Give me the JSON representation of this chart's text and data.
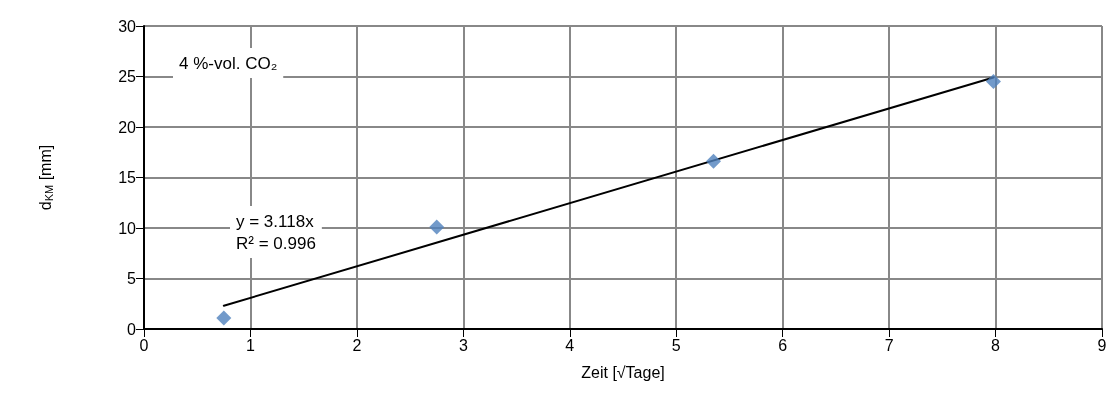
{
  "chart_data": {
    "type": "scatter",
    "xlabel": "Zeit [√Tage]",
    "ylabel": "d$_{KM}$ [mm]",
    "xlim": [
      0,
      9
    ],
    "xticks": [
      0,
      1,
      2,
      3,
      4,
      5,
      6,
      7,
      8,
      9
    ],
    "ylim": [
      0,
      30
    ],
    "yticks": [
      0,
      5,
      10,
      15,
      20,
      25,
      30
    ],
    "grid": true,
    "series": [
      {
        "color": "#4f81bd",
        "marker": "diamond",
        "x": [
          0.75,
          2.75,
          5.35,
          7.98
        ],
        "values": [
          1.1,
          10.1,
          16.6,
          24.5
        ]
      },
      {
        "type": "line",
        "color": "#000000",
        "marker": "none",
        "line_style": "solid",
        "x": [
          0.75,
          7.98
        ],
        "values": [
          2.3,
          24.9
        ]
      }
    ],
    "annotations": [
      "4 %-vol. CO₂",
      "y = 3.118x\nR² = 0.996"
    ]
  }
}
